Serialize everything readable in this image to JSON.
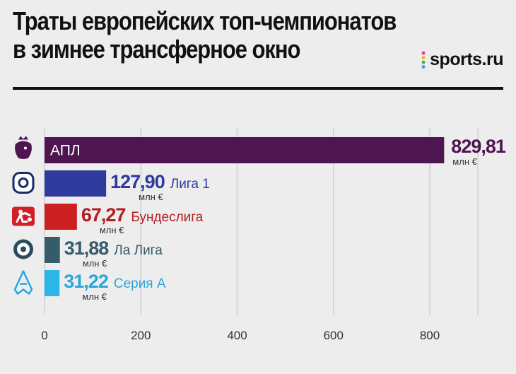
{
  "header": {
    "title_line1": "Траты европейских топ-чемпионатов",
    "title_line2": "в зимнее трансферное окно",
    "brand": "sports.ru"
  },
  "colors": {
    "background": "#ededed",
    "grid": "#cfcfcf",
    "axis_text": "#333333"
  },
  "chart_data": {
    "type": "bar",
    "orientation": "horizontal",
    "categories": [
      "АПЛ",
      "Лига 1",
      "Бундеслига",
      "Ла Лига",
      "Серия А"
    ],
    "values": [
      829.81,
      127.9,
      67.27,
      31.88,
      31.22
    ],
    "value_labels": [
      "829,81",
      "127,90",
      "67,27",
      "31,88",
      "31,22"
    ],
    "unit": "млн €",
    "bar_colors": [
      "#4e1650",
      "#2e3a9c",
      "#cc1f22",
      "#365b6b",
      "#29b6e8"
    ],
    "label_colors": [
      "#4e1650",
      "#2e3a9c",
      "#b51d20",
      "#365b6b",
      "#2aa6dc"
    ],
    "icons": [
      "premier-league-lion-icon",
      "ligue1-logo-icon",
      "bundesliga-player-icon",
      "laliga-ball-icon",
      "serie-a-logo-icon"
    ],
    "xlim": [
      0,
      900
    ],
    "xticks": [
      0,
      200,
      400,
      600,
      800
    ],
    "grid": true
  }
}
